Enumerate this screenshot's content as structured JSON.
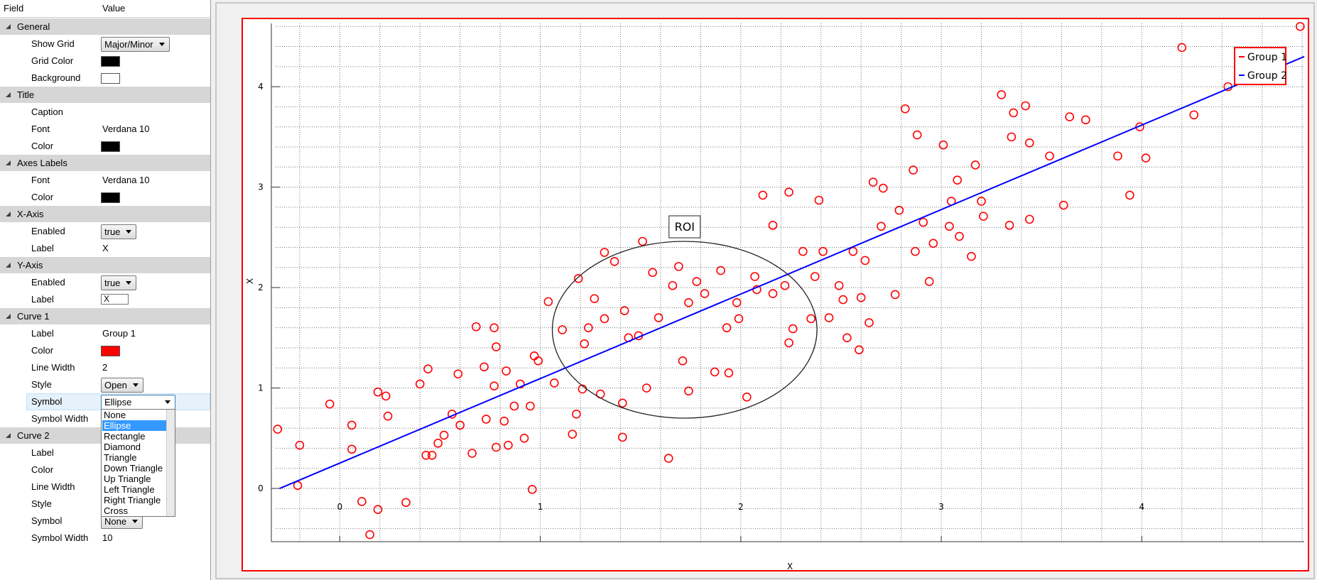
{
  "property_grid": {
    "columns": [
      "Field",
      "Value"
    ],
    "sections": [
      {
        "title": "General",
        "rows": [
          {
            "field": "Show Grid",
            "dropdown": "Major/Minor"
          },
          {
            "field": "Grid Color",
            "swatch": "#000000"
          },
          {
            "field": "Background",
            "swatch": "#ffffff"
          }
        ]
      },
      {
        "title": "Title",
        "rows": [
          {
            "field": "Caption"
          },
          {
            "field": "Font",
            "text": "Verdana 10"
          },
          {
            "field": "Color",
            "swatch": "#000000"
          }
        ]
      },
      {
        "title": "Axes Labels",
        "rows": [
          {
            "field": "Font",
            "text": "Verdana 10"
          },
          {
            "field": "Color",
            "swatch": "#000000"
          }
        ]
      },
      {
        "title": "X-Axis",
        "rows": [
          {
            "field": "Enabled",
            "dropdown": "true"
          },
          {
            "field": "Label",
            "text": "X"
          }
        ]
      },
      {
        "title": "Y-Axis",
        "rows": [
          {
            "field": "Enabled",
            "dropdown": "true"
          },
          {
            "field": "Label",
            "textbox": "X"
          }
        ]
      },
      {
        "title": "Curve 1",
        "rows": [
          {
            "field": "Label",
            "text": "Group 1"
          },
          {
            "field": "Color",
            "swatch": "#ff0000"
          },
          {
            "field": "Line Width",
            "text": "2"
          },
          {
            "field": "Style",
            "dropdown": "Open"
          },
          {
            "field": "Symbol",
            "dropdown": "Ellipse",
            "selected": true
          },
          {
            "field": "Symbol Width"
          }
        ]
      },
      {
        "title": "Curve 2",
        "rows": [
          {
            "field": "Label"
          },
          {
            "field": "Color"
          },
          {
            "field": "Line Width"
          },
          {
            "field": "Style"
          },
          {
            "field": "Symbol",
            "dropdown": "None"
          },
          {
            "field": "Symbol Width",
            "text": "10"
          }
        ]
      }
    ],
    "symbol_list": {
      "options": [
        "None",
        "Ellipse",
        "Rectangle",
        "Diamond",
        "Triangle",
        "Down Triangle",
        "Up Triangle",
        "Left Triangle",
        "Right Triangle",
        "Cross"
      ],
      "selected": 1
    }
  },
  "chart_data": {
    "type": "scatter",
    "xlabel": "X",
    "ylabel": "X",
    "xlim": [
      -0.32,
      4.81
    ],
    "ylim": [
      -0.53,
      4.63
    ],
    "xticks": [
      0,
      1,
      2,
      3,
      4
    ],
    "yticks": [
      0,
      1,
      2,
      3,
      4
    ],
    "x_minor_ticks": [
      -0.2,
      0.2,
      0.4,
      0.6,
      0.8,
      1.2,
      1.4,
      1.6,
      1.8,
      2.2,
      2.4,
      2.6,
      2.8,
      3.2,
      3.4,
      3.6,
      3.8,
      4.2,
      4.4,
      4.6,
      4.8
    ],
    "y_minor_ticks": [
      -0.4,
      -0.2,
      0.2,
      0.4,
      0.6,
      0.8,
      1.2,
      1.4,
      1.6,
      1.8,
      2.2,
      2.4,
      2.6,
      2.8,
      3.2,
      3.4,
      3.6,
      3.8,
      4.2,
      4.4,
      4.6
    ],
    "grid": true,
    "legend": "top-right",
    "roi": {
      "label": "ROI",
      "cx": 1.72,
      "cy": 1.58,
      "rx": 0.66,
      "ry": 0.88
    },
    "series": [
      {
        "name": "Group 1",
        "color": "#ff0000",
        "mode": "markers",
        "x": [
          -0.31,
          -0.2,
          -0.21,
          -0.05,
          0.06,
          0.06,
          0.11,
          0.15,
          0.19,
          0.19,
          0.23,
          0.24,
          0.33,
          0.4,
          0.44,
          0.43,
          0.46,
          0.49,
          0.52,
          0.56,
          0.59,
          0.6,
          0.66,
          0.68,
          0.72,
          0.73,
          0.77,
          0.78,
          0.77,
          0.78,
          0.82,
          0.83,
          0.84,
          0.87,
          0.9,
          0.92,
          0.95,
          0.96,
          0.97,
          0.99,
          1.04,
          1.07,
          1.11,
          1.16,
          1.18,
          1.19,
          1.21,
          1.22,
          1.27,
          1.32,
          1.3,
          1.41,
          1.41,
          1.37,
          1.44,
          1.51,
          1.53,
          1.56,
          1.64,
          1.69,
          1.74,
          1.71,
          1.78,
          1.87,
          1.94,
          1.9,
          1.98,
          2.03,
          2.07,
          2.11,
          2.16,
          2.24,
          2.26,
          2.24,
          2.35,
          2.39,
          2.44,
          2.51,
          2.53,
          2.59,
          2.6,
          2.64,
          2.66,
          2.71,
          2.77,
          2.82,
          2.86,
          2.88,
          2.94,
          2.96,
          3.01,
          3.05,
          3.09,
          3.15,
          3.17,
          3.21,
          3.3,
          3.34,
          3.35,
          3.36,
          3.42,
          3.44,
          3.44,
          3.54,
          3.61,
          3.64,
          3.72,
          3.88,
          3.94,
          3.99,
          4.02,
          4.2,
          4.26,
          4.43,
          4.79,
          1.24,
          1.32,
          1.42,
          1.49,
          1.59,
          1.66,
          1.74,
          1.82,
          1.93,
          1.99,
          2.08,
          2.16,
          2.22,
          2.31,
          2.37,
          2.41,
          2.49,
          2.56,
          2.62,
          2.7,
          2.79,
          2.87,
          2.91,
          3.04,
          3.08,
          3.2
        ],
        "y": [
          0.59,
          0.43,
          0.03,
          0.84,
          0.63,
          0.39,
          -0.13,
          -0.46,
          0.96,
          -0.21,
          0.92,
          0.72,
          -0.14,
          1.04,
          1.19,
          0.33,
          0.33,
          0.45,
          0.53,
          0.74,
          1.14,
          0.63,
          0.35,
          1.61,
          1.21,
          0.69,
          1.6,
          1.41,
          1.02,
          0.41,
          0.67,
          1.17,
          0.43,
          0.82,
          1.04,
          0.5,
          0.82,
          -0.01,
          1.32,
          1.27,
          1.86,
          1.05,
          1.58,
          0.54,
          0.74,
          2.09,
          0.99,
          1.44,
          1.89,
          2.35,
          0.94,
          0.85,
          0.51,
          2.26,
          1.5,
          2.46,
          1.0,
          2.15,
          0.3,
          2.21,
          0.97,
          1.27,
          2.06,
          1.16,
          1.15,
          2.17,
          1.85,
          0.91,
          2.11,
          2.92,
          2.62,
          2.95,
          1.59,
          1.45,
          1.69,
          2.87,
          1.7,
          1.88,
          1.5,
          1.38,
          1.9,
          1.65,
          3.05,
          2.99,
          1.93,
          3.78,
          3.17,
          3.52,
          2.06,
          2.44,
          3.42,
          2.86,
          2.51,
          2.31,
          3.22,
          2.71,
          3.92,
          2.62,
          3.5,
          3.74,
          3.81,
          3.44,
          2.68,
          3.31,
          2.82,
          3.7,
          3.67,
          3.31,
          2.92,
          3.6,
          3.29,
          4.39,
          3.72,
          4.0,
          4.6,
          1.6,
          1.69,
          1.77,
          1.52,
          1.7,
          2.02,
          1.85,
          1.94,
          1.6,
          1.69,
          1.98,
          1.94,
          2.02,
          2.36,
          2.11,
          2.36,
          2.02,
          2.36,
          2.27,
          2.61,
          2.77,
          2.36,
          2.65,
          2.61,
          3.07,
          2.86
        ]
      },
      {
        "name": "Group 2",
        "color": "#0000ff",
        "mode": "line",
        "x": [
          -0.3,
          4.81
        ],
        "y": [
          0,
          4.3
        ]
      }
    ]
  }
}
